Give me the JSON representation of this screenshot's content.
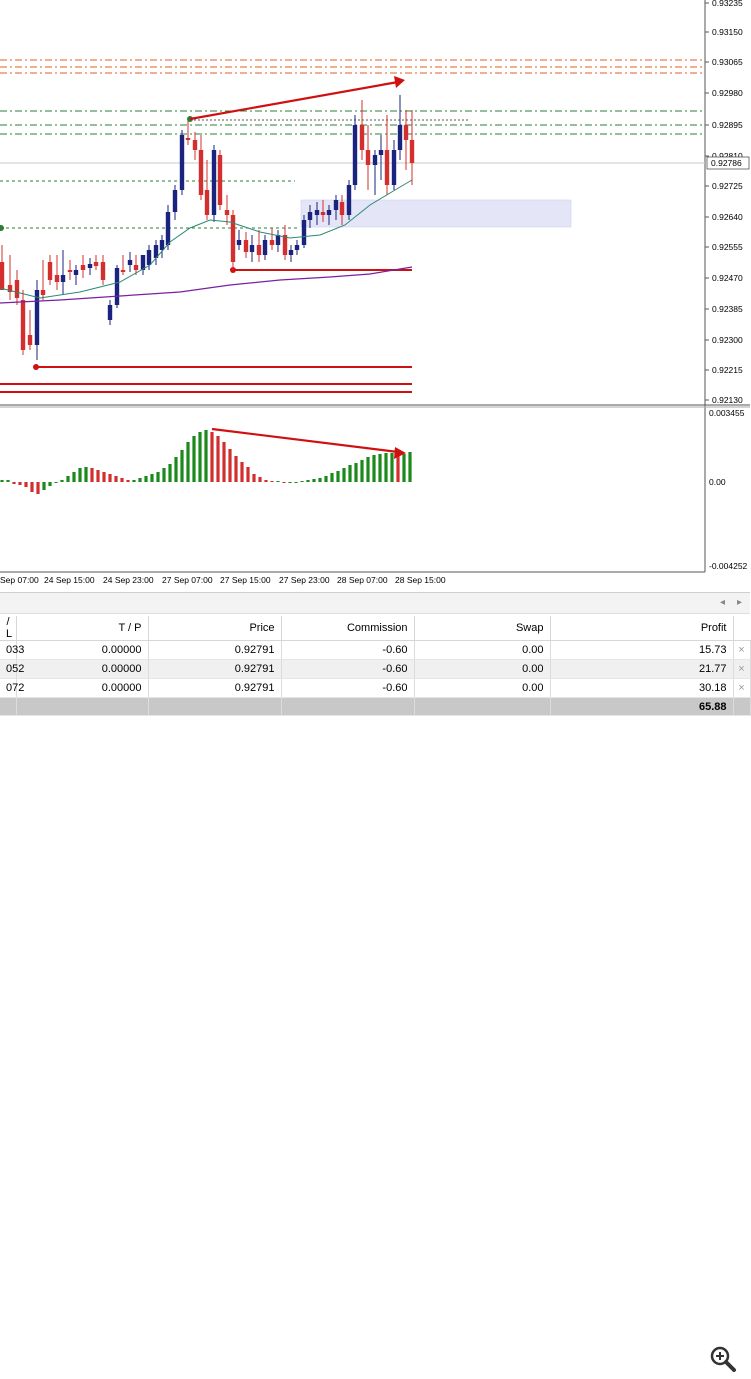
{
  "chart": {
    "price_axis": [
      "0.93235",
      "0.93150",
      "0.93065",
      "0.92980",
      "0.92895",
      "0.92810",
      "0.92725",
      "0.92640",
      "0.92555",
      "0.92470",
      "0.92385",
      "0.92300",
      "0.92215",
      "0.92130"
    ],
    "current_price": "0.92786",
    "time_axis": [
      "Sep 07:00",
      "24 Sep 15:00",
      "24 Sep 23:00",
      "27 Sep 07:00",
      "27 Sep 15:00",
      "27 Sep 23:00",
      "28 Sep 07:00",
      "28 Sep 15:00"
    ],
    "indicator_axis": [
      "0.003455",
      "0.00",
      "-0.004252"
    ],
    "colors": {
      "bull": "#1a237e",
      "bear": "#d32f2f",
      "hist_up": "#1b8a1b",
      "hist_down": "#d32f2f",
      "level_orange": "#e06020",
      "level_green": "#2e7d32",
      "ma_fast": "#2a8a70",
      "ma_slow": "#7b1fa2",
      "zone": "#e4e6f8"
    }
  },
  "terminal": {
    "columns": [
      "/ L",
      "T / P",
      "Price",
      "Commission",
      "Swap",
      "Profit"
    ],
    "rows": [
      {
        "sl": "033",
        "tp": "0.00000",
        "price": "0.92791",
        "commission": "-0.60",
        "swap": "0.00",
        "profit": "15.73"
      },
      {
        "sl": "052",
        "tp": "0.00000",
        "price": "0.92791",
        "commission": "-0.60",
        "swap": "0.00",
        "profit": "21.77"
      },
      {
        "sl": "072",
        "tp": "0.00000",
        "price": "0.92791",
        "commission": "-0.60",
        "swap": "0.00",
        "profit": "30.18"
      }
    ],
    "total_profit": "65.88",
    "close_icon": "×",
    "scroll_left": "◂",
    "scroll_right": "▸"
  },
  "icons": {
    "zoom": "zoom-in-icon"
  }
}
